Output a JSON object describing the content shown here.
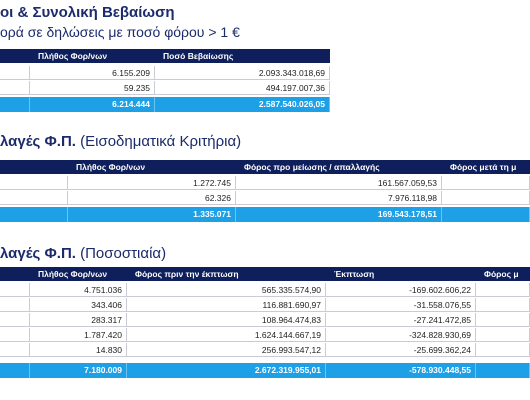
{
  "sections": [
    {
      "title_bold": "οι & Συνολική Βεβαίωση",
      "subtitle": "ορά σε δηλώσεις με ποσό φόρου > 1 €",
      "headers": [
        "Πλήθος Φορ/νων",
        "Ποσό Βεβαίωσης"
      ],
      "rows": [
        [
          "6.155.209",
          "2.093.343.018,69"
        ],
        [
          "59.235",
          "494.197.007,36"
        ]
      ],
      "total": [
        "6.214.444",
        "2.587.540.026,05"
      ]
    },
    {
      "title_bold": "λαγές Φ.Π.",
      "title_rest": " (Εισοδηματικά Κριτήρια)",
      "headers": [
        "Πλήθος Φορ/νων",
        "Φόρος προ μείωσης / απαλλαγής",
        "Φόρος μετά τη μ"
      ],
      "rows": [
        [
          "1.272.745",
          "161.567.059,53"
        ],
        [
          "62.326",
          "7.976.118,98"
        ]
      ],
      "total": [
        "1.335.071",
        "169.543.178,51"
      ]
    },
    {
      "title_bold": "λαγές Φ.Π.",
      "title_rest": " (Ποσοστιαία)",
      "headers": [
        "Πλήθος Φορ/νων",
        "Φόρος πριν την έκπτωση",
        "Έκπτωση",
        "Φόρος μ"
      ],
      "rows": [
        [
          "4.751.036",
          "565.335.574,90",
          "-169.602.606,22"
        ],
        [
          "343.406",
          "116.881.690,97",
          "-31.558.076,55"
        ],
        [
          "283.317",
          "108.964.474,83",
          "-27.241.472,85"
        ],
        [
          "1.787.420",
          "1.624.144.667,19",
          "-324.828.930,69"
        ],
        [
          "14.830",
          "256.993.547,12",
          "-25.699.362,24"
        ]
      ],
      "total": [
        "7.180.009",
        "2.672.319.955,01",
        "-578.930.448,55"
      ]
    }
  ]
}
